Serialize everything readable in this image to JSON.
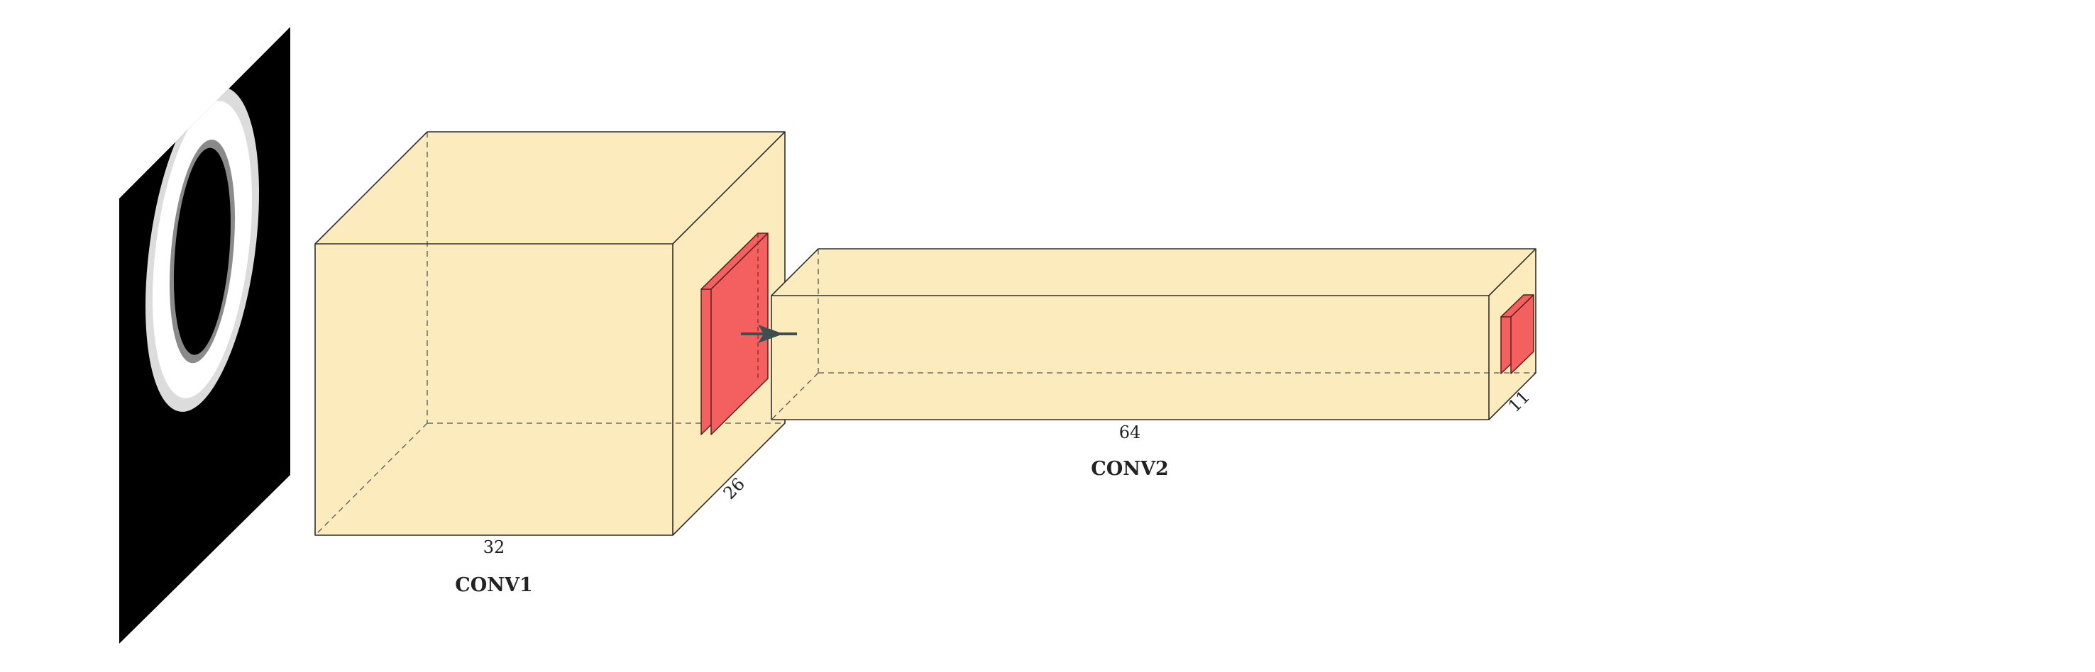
{
  "colors": {
    "background": "#ffffff",
    "conv_fill": "#fcebbd",
    "conv_stroke": "#2f2f2f",
    "kernel_fill": "#f46060",
    "arrow": "#3f4f4f",
    "image_bg": "#000000",
    "digit": "#ffffff"
  },
  "input_image": {
    "icon": "mnist-digit-zero-icon"
  },
  "layers": {
    "conv1": {
      "title": "CONV1",
      "width_label": "32",
      "depth_label": "26"
    },
    "conv2": {
      "title": "CONV2",
      "width_label": "64",
      "depth_label": "11"
    }
  },
  "connections": [
    {
      "from": "conv1",
      "to": "conv2",
      "icon": "arrow-right-icon"
    }
  ]
}
